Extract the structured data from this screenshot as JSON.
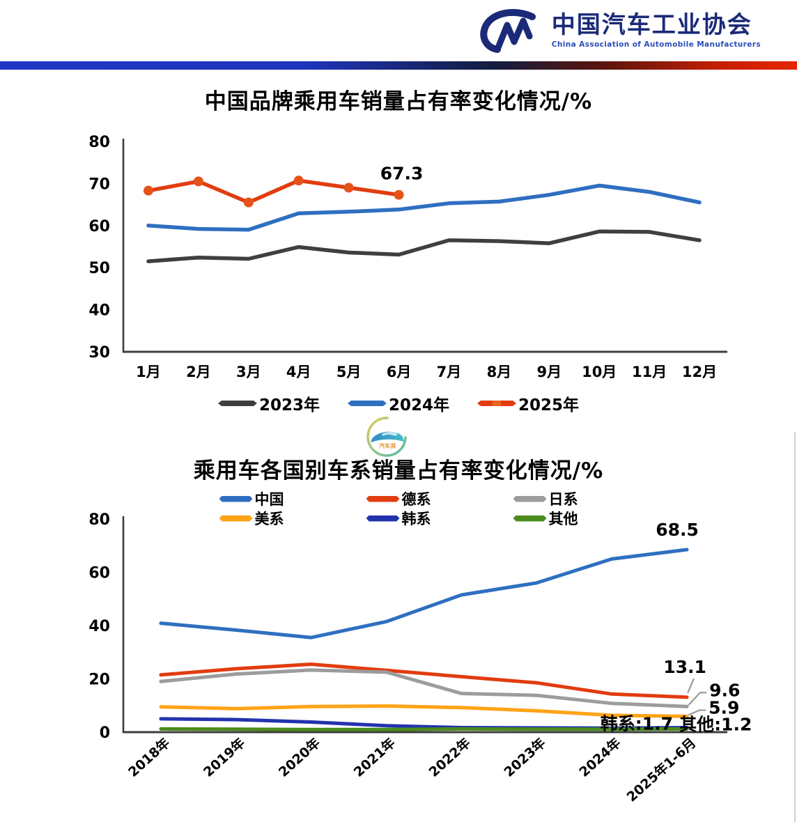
{
  "header": {
    "org_name_cn": "中国汽车工业协会",
    "org_name_en": "China Association of Automobile Manufacturers"
  },
  "watermark": {
    "text": "汽车湃"
  },
  "chart_data": [
    {
      "type": "line",
      "title": "中国品牌乘用车销量占有率变化情况/%",
      "categories": [
        "1月",
        "2月",
        "3月",
        "4月",
        "5月",
        "6月",
        "7月",
        "8月",
        "9月",
        "10月",
        "11月",
        "12月"
      ],
      "yticks": [
        80,
        70,
        60,
        50,
        40,
        30
      ],
      "ylim": [
        30,
        80
      ],
      "grid": false,
      "legend_position": "bottom",
      "series": [
        {
          "name": "2023年",
          "color": "#3f3f3f",
          "marker": "none",
          "values": [
            51.5,
            52.4,
            52.1,
            54.9,
            53.6,
            53.1,
            56.5,
            56.3,
            55.8,
            58.6,
            58.5,
            56.5
          ]
        },
        {
          "name": "2024年",
          "color": "#2e6fc0",
          "marker": "none",
          "values": [
            60.0,
            59.2,
            59.0,
            62.9,
            63.3,
            63.8,
            65.3,
            65.7,
            67.3,
            69.5,
            68.0,
            65.5
          ]
        },
        {
          "name": "2025年",
          "color": "#e23c0f",
          "marker": "circle",
          "values": [
            68.3,
            70.5,
            65.5,
            70.7,
            69.0,
            67.3
          ]
        }
      ],
      "annotations": [
        {
          "text": "67.3",
          "series": "2025年",
          "index": 5
        }
      ]
    },
    {
      "type": "line",
      "title": "乘用车各国别车系销量占有率变化情况/%",
      "categories": [
        "2018年",
        "2019年",
        "2020年",
        "2021年",
        "2022年",
        "2023年",
        "2024年",
        "2025年1-6月"
      ],
      "yticks": [
        80,
        60,
        40,
        20,
        0
      ],
      "ylim": [
        0,
        80
      ],
      "grid": false,
      "legend_position": "top",
      "series": [
        {
          "name": "中国",
          "color": "#2e6fc0",
          "values": [
            40.9,
            38.3,
            35.5,
            41.5,
            51.5,
            56.0,
            65.0,
            68.5
          ]
        },
        {
          "name": "德系",
          "color": "#e23c0f",
          "values": [
            21.5,
            23.8,
            25.5,
            23.2,
            20.8,
            18.5,
            14.3,
            13.1
          ]
        },
        {
          "name": "日系",
          "color": "#9c9c9c",
          "values": [
            19.0,
            21.8,
            23.3,
            22.5,
            14.5,
            13.8,
            10.8,
            9.6
          ]
        },
        {
          "name": "美系",
          "color": "#ffa316",
          "values": [
            9.5,
            8.8,
            9.6,
            9.8,
            9.2,
            8.0,
            6.3,
            5.9
          ]
        },
        {
          "name": "韩系",
          "color": "#2233ae",
          "values": [
            5.0,
            4.7,
            3.8,
            2.4,
            1.7,
            1.6,
            1.5,
            1.7
          ]
        },
        {
          "name": "其他",
          "color": "#4b8b1d",
          "values": [
            1.2,
            1.1,
            1.0,
            1.0,
            1.2,
            1.1,
            1.1,
            1.2
          ]
        }
      ],
      "end_labels": [
        {
          "text": "68.5",
          "series": "中国"
        },
        {
          "text": "13.1",
          "series": "德系"
        },
        {
          "text": "9.6",
          "series": "日系"
        },
        {
          "text": "5.9",
          "series": "美系"
        },
        {
          "text": "韩系:1.7",
          "series": "韩系"
        },
        {
          "text": "其他:1.2",
          "series": "其他"
        }
      ]
    }
  ]
}
